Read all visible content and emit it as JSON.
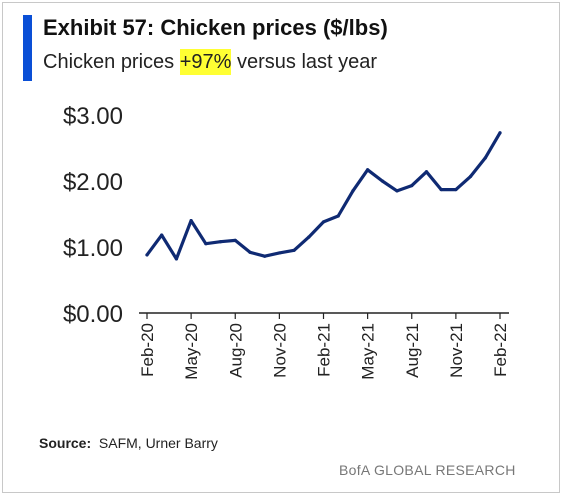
{
  "header": {
    "title": "Exhibit 57: Chicken prices ($/lbs)",
    "subtitle_prefix": "Chicken prices ",
    "subtitle_highlight": "+97%",
    "subtitle_suffix": " versus last year"
  },
  "footer": {
    "source_label": "Source:",
    "source_text": "SAFM, Urner Barry",
    "brand": "BofA GLOBAL RESEARCH"
  },
  "colors": {
    "accent": "#0a4fd6",
    "line": "#0f2a73",
    "highlight": "#ffff33"
  },
  "chart_data": {
    "type": "line",
    "title": "Exhibit 57: Chicken prices ($/lbs)",
    "subtitle": "Chicken prices +97% versus last year",
    "xlabel": "",
    "ylabel": "",
    "ylim": [
      0,
      3
    ],
    "yticks": [
      {
        "value": 0,
        "label": "$0.00"
      },
      {
        "value": 1,
        "label": "$1.00"
      },
      {
        "value": 2,
        "label": "$2.00"
      },
      {
        "value": 3,
        "label": "$3.00"
      }
    ],
    "xticks": [
      {
        "index": 0,
        "label": "Feb-20"
      },
      {
        "index": 3,
        "label": "May-20"
      },
      {
        "index": 6,
        "label": "Aug-20"
      },
      {
        "index": 9,
        "label": "Nov-20"
      },
      {
        "index": 12,
        "label": "Feb-21"
      },
      {
        "index": 15,
        "label": "May-21"
      },
      {
        "index": 18,
        "label": "Aug-21"
      },
      {
        "index": 21,
        "label": "Nov-21"
      },
      {
        "index": 24,
        "label": "Feb-22"
      }
    ],
    "grid": false,
    "legend": "none",
    "series": [
      {
        "x": [
          "Feb-20",
          "Mar-20",
          "Apr-20",
          "May-20",
          "Jun-20",
          "Jul-20",
          "Aug-20",
          "Sep-20",
          "Oct-20",
          "Nov-20",
          "Dec-20",
          "Jan-21",
          "Feb-21",
          "Mar-21",
          "Apr-21",
          "May-21",
          "Jun-21",
          "Jul-21",
          "Aug-21",
          "Sep-21",
          "Oct-21",
          "Nov-21",
          "Dec-21",
          "Jan-22",
          "Feb-22"
        ],
        "values": [
          0.88,
          1.18,
          0.82,
          1.4,
          1.05,
          1.08,
          1.1,
          0.92,
          0.86,
          0.91,
          0.95,
          1.15,
          1.38,
          1.47,
          1.85,
          2.17,
          2.0,
          1.85,
          1.93,
          2.14,
          1.87,
          1.87,
          2.07,
          2.35,
          2.73
        ]
      }
    ]
  }
}
